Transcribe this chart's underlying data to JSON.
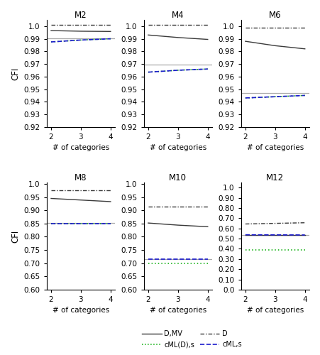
{
  "panels": [
    {
      "title": "M2",
      "ylim": [
        0.92,
        1.005
      ],
      "yticks": [
        0.92,
        0.93,
        0.94,
        0.95,
        0.96,
        0.97,
        0.98,
        0.99,
        1.0
      ],
      "D_MV": [
        0.9965,
        0.996,
        0.9958
      ],
      "D": [
        1.001,
        1.001,
        1.001
      ],
      "cML_s": [
        0.9875,
        0.989,
        0.99
      ],
      "cMLDs": [
        0.9875,
        0.989,
        0.99
      ],
      "gray_line": 0.9905
    },
    {
      "title": "M4",
      "ylim": [
        0.92,
        1.005
      ],
      "yticks": [
        0.92,
        0.93,
        0.94,
        0.95,
        0.96,
        0.97,
        0.98,
        0.99,
        1.0
      ],
      "D_MV": [
        0.993,
        0.991,
        0.9895
      ],
      "D": [
        1.001,
        1.001,
        1.001
      ],
      "cML_s": [
        0.9635,
        0.965,
        0.966
      ],
      "cMLDs": [
        0.9635,
        0.965,
        0.966
      ],
      "gray_line": 0.9695
    },
    {
      "title": "M6",
      "ylim": [
        0.92,
        1.005
      ],
      "yticks": [
        0.92,
        0.93,
        0.94,
        0.95,
        0.96,
        0.97,
        0.98,
        0.99,
        1.0
      ],
      "D_MV": [
        0.988,
        0.9845,
        0.982
      ],
      "D": [
        0.999,
        0.999,
        0.999
      ],
      "cML_s": [
        0.943,
        0.944,
        0.945
      ],
      "cMLDs": [
        0.943,
        0.944,
        0.945
      ],
      "gray_line": 0.947
    },
    {
      "title": "M8",
      "ylim": [
        0.6,
        1.005
      ],
      "yticks": [
        0.6,
        0.65,
        0.7,
        0.75,
        0.8,
        0.85,
        0.9,
        0.95,
        1.0
      ],
      "D_MV": [
        0.945,
        0.939,
        0.933
      ],
      "D": [
        0.976,
        0.976,
        0.976
      ],
      "cML_s": [
        0.85,
        0.85,
        0.85
      ],
      "cMLDs": [
        0.85,
        0.85,
        0.85
      ],
      "gray_line": 0.852
    },
    {
      "title": "M10",
      "ylim": [
        0.6,
        1.005
      ],
      "yticks": [
        0.6,
        0.65,
        0.7,
        0.75,
        0.8,
        0.85,
        0.9,
        0.95,
        1.0
      ],
      "D_MV": [
        0.852,
        0.844,
        0.838
      ],
      "D": [
        0.913,
        0.913,
        0.913
      ],
      "cML_s": [
        0.715,
        0.715,
        0.715
      ],
      "cMLDs": [
        0.7005,
        0.7005,
        0.7005
      ],
      "gray_line": 0.716
    },
    {
      "title": "M12",
      "ylim": [
        0.0,
        1.05
      ],
      "yticks": [
        0.0,
        0.1,
        0.2,
        0.3,
        0.4,
        0.5,
        0.6,
        0.7,
        0.8,
        0.9,
        1.0
      ],
      "D_MV": [
        0.536,
        0.536,
        0.536
      ],
      "D": [
        0.644,
        0.65,
        0.656
      ],
      "cML_s": [
        0.538,
        0.537,
        0.536
      ],
      "cMLDs": [
        0.39,
        0.39,
        0.39
      ],
      "gray_line": 0.538
    }
  ],
  "x": [
    2,
    3,
    4
  ],
  "colors": {
    "D_MV": "#3a3a3a",
    "D": "#3a3a3a",
    "cML_s": "#1a1acc",
    "cMLDs": "#00aa00",
    "gray_line": "#aaaaaa"
  },
  "legend": {
    "D_MV_label": "D,MV",
    "D_label": "D",
    "cMLDs_label": "cML(D),s",
    "cML_s_label": "cML,s"
  },
  "xlabel": "# of categories",
  "ylabel": "CFI"
}
